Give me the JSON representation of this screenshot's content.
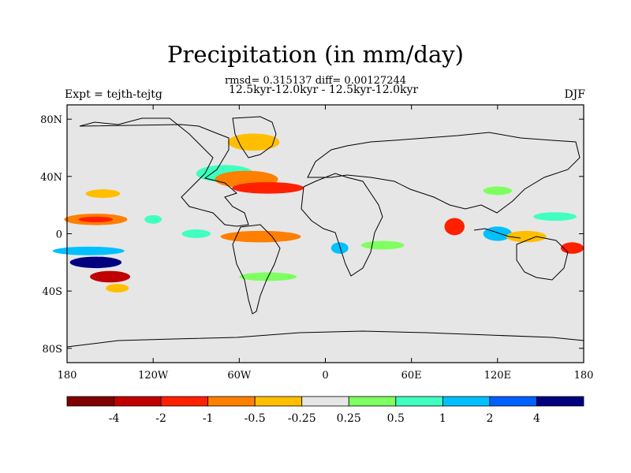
{
  "header": {
    "title": "Precipitation (in mm/day)",
    "stats_line": "rmsd= 0.315137 diff= 0.00127244",
    "period_line": "12.5kyr-12.0kyr - 12.5kyr-12.0kyr",
    "experiment": "Expt = tejth-tejtg",
    "season": "DJF"
  },
  "map": {
    "projection": "cylindrical equidistant",
    "background_color": "#e6e6e6",
    "lat_ticks": [
      {
        "value": 80,
        "label": "80N"
      },
      {
        "value": 40,
        "label": "40N"
      },
      {
        "value": 0,
        "label": "0"
      },
      {
        "value": -40,
        "label": "40S"
      },
      {
        "value": -80,
        "label": "80S"
      }
    ],
    "lon_ticks": [
      {
        "value": -180,
        "label": "180"
      },
      {
        "value": -120,
        "label": "120W"
      },
      {
        "value": -60,
        "label": "60W"
      },
      {
        "value": 0,
        "label": "0"
      },
      {
        "value": 60,
        "label": "60E"
      },
      {
        "value": 120,
        "label": "120E"
      },
      {
        "value": 180,
        "label": "180"
      }
    ],
    "lon_range": [
      -180,
      180
    ],
    "lat_range": [
      -90,
      90
    ]
  },
  "colorbar": {
    "colors": [
      "#7f0000",
      "#c00000",
      "#ff2000",
      "#ff7f00",
      "#ffbf00",
      "#e6e6e6",
      "#7fff60",
      "#40ffc0",
      "#00c0ff",
      "#0060ff",
      "#00007f"
    ],
    "labels": [
      "-4",
      "-2",
      "-1",
      "-0.5",
      "-0.25",
      "0.25",
      "0.5",
      "1",
      "2",
      "4"
    ]
  },
  "anomaly_patches": [
    {
      "lon": -160,
      "lat": 10,
      "rx": 22,
      "ry": 4,
      "level": 3
    },
    {
      "lon": -160,
      "lat": 10,
      "rx": 12,
      "ry": 2,
      "level": 2
    },
    {
      "lon": -155,
      "lat": 28,
      "rx": 12,
      "ry": 3,
      "level": 4
    },
    {
      "lon": -160,
      "lat": -20,
      "rx": 18,
      "ry": 4,
      "level": 10
    },
    {
      "lon": -165,
      "lat": -12,
      "rx": 25,
      "ry": 3,
      "level": 8
    },
    {
      "lon": -150,
      "lat": -30,
      "rx": 14,
      "ry": 4,
      "level": 1
    },
    {
      "lon": -145,
      "lat": -38,
      "rx": 8,
      "ry": 3,
      "level": 4
    },
    {
      "lon": -120,
      "lat": 10,
      "rx": 6,
      "ry": 3,
      "level": 7
    },
    {
      "lon": -70,
      "lat": 42,
      "rx": 20,
      "ry": 6,
      "level": 7
    },
    {
      "lon": -55,
      "lat": 38,
      "rx": 22,
      "ry": 6,
      "level": 3
    },
    {
      "lon": -40,
      "lat": 32,
      "rx": 25,
      "ry": 4,
      "level": 2
    },
    {
      "lon": -50,
      "lat": 64,
      "rx": 18,
      "ry": 6,
      "level": 4
    },
    {
      "lon": -45,
      "lat": -2,
      "rx": 28,
      "ry": 4,
      "level": 3
    },
    {
      "lon": -90,
      "lat": 0,
      "rx": 10,
      "ry": 3,
      "level": 7
    },
    {
      "lon": -40,
      "lat": -30,
      "rx": 20,
      "ry": 3,
      "level": 6
    },
    {
      "lon": 10,
      "lat": -10,
      "rx": 6,
      "ry": 4,
      "level": 8
    },
    {
      "lon": 40,
      "lat": -8,
      "rx": 15,
      "ry": 3,
      "level": 6
    },
    {
      "lon": 90,
      "lat": 5,
      "rx": 7,
      "ry": 6,
      "level": 2
    },
    {
      "lon": 120,
      "lat": 0,
      "rx": 10,
      "ry": 5,
      "level": 8
    },
    {
      "lon": 140,
      "lat": -2,
      "rx": 14,
      "ry": 4,
      "level": 4
    },
    {
      "lon": 160,
      "lat": 12,
      "rx": 15,
      "ry": 3,
      "level": 7
    },
    {
      "lon": 172,
      "lat": -10,
      "rx": 8,
      "ry": 4,
      "level": 2
    },
    {
      "lon": 120,
      "lat": 30,
      "rx": 10,
      "ry": 3,
      "level": 6
    }
  ]
}
